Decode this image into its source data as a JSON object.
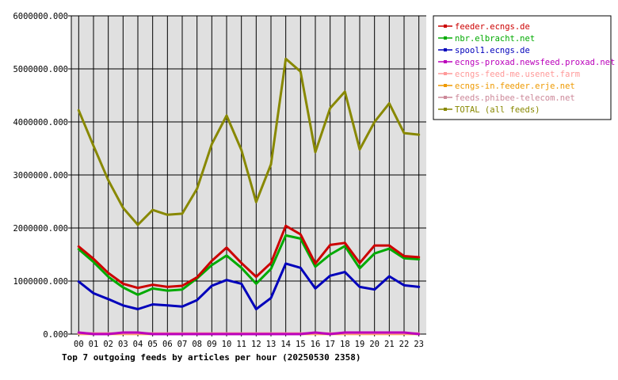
{
  "chart_data": {
    "type": "line",
    "title": "Top 7 outgoing feeds by articles per hour (20250530 2358)",
    "xlabel": "",
    "ylabel": "",
    "categories": [
      "00",
      "01",
      "02",
      "03",
      "04",
      "05",
      "06",
      "07",
      "08",
      "09",
      "10",
      "11",
      "12",
      "13",
      "14",
      "15",
      "16",
      "17",
      "18",
      "19",
      "20",
      "21",
      "22",
      "23"
    ],
    "ylim": [
      0,
      6000000
    ],
    "y_ticks": [
      0,
      1000000,
      2000000,
      3000000,
      4000000,
      5000000,
      6000000
    ],
    "y_tick_labels": [
      "0.000",
      "1000000.000",
      "2000000.000",
      "3000000.000",
      "4000000.000",
      "5000000.000",
      "6000000.000"
    ],
    "grid": true,
    "legend_position": "right",
    "plot_background": "#e0e0e0",
    "series": [
      {
        "name": "feeder.ecngs.de",
        "color": "#cc0000",
        "values": [
          1650000,
          1420000,
          1150000,
          950000,
          870000,
          930000,
          890000,
          910000,
          1070000,
          1380000,
          1630000,
          1340000,
          1080000,
          1340000,
          2040000,
          1880000,
          1330000,
          1680000,
          1720000,
          1340000,
          1670000,
          1670000,
          1470000,
          1450000
        ]
      },
      {
        "name": "nbr.elbracht.net",
        "color": "#00aa00",
        "values": [
          1600000,
          1360000,
          1080000,
          880000,
          740000,
          860000,
          820000,
          840000,
          1050000,
          1300000,
          1480000,
          1250000,
          950000,
          1230000,
          1860000,
          1800000,
          1270000,
          1500000,
          1660000,
          1240000,
          1520000,
          1610000,
          1430000,
          1410000
        ]
      },
      {
        "name": "spool1.ecngs.de",
        "color": "#0000bb",
        "values": [
          990000,
          770000,
          660000,
          540000,
          470000,
          560000,
          540000,
          520000,
          640000,
          910000,
          1020000,
          950000,
          470000,
          680000,
          1330000,
          1250000,
          860000,
          1100000,
          1170000,
          890000,
          840000,
          1090000,
          920000,
          890000
        ]
      },
      {
        "name": "ecngs-proxad.newsfeed.proxad.net",
        "color": "#bb00bb",
        "values": [
          30000,
          0,
          0,
          30000,
          30000,
          0,
          0,
          0,
          0,
          0,
          0,
          0,
          0,
          0,
          0,
          0,
          30000,
          0,
          30000,
          30000,
          30000,
          30000,
          30000,
          0
        ]
      },
      {
        "name": "ecngs-feed-me.usenet.farm",
        "color": "#ff9999",
        "values": [
          10000,
          10000,
          10000,
          10000,
          10000,
          10000,
          10000,
          10000,
          10000,
          10000,
          10000,
          10000,
          10000,
          10000,
          10000,
          10000,
          10000,
          10000,
          10000,
          10000,
          10000,
          10000,
          10000,
          10000
        ]
      },
      {
        "name": "ecngs-in.feeder.erje.net",
        "color": "#ee9900",
        "values": [
          5000,
          5000,
          5000,
          5000,
          5000,
          5000,
          5000,
          5000,
          5000,
          5000,
          5000,
          5000,
          5000,
          5000,
          5000,
          5000,
          5000,
          5000,
          5000,
          5000,
          5000,
          5000,
          5000,
          5000
        ]
      },
      {
        "name": "feeds.phibee-telecom.net",
        "color": "#cc8899",
        "values": [
          20000,
          10000,
          10000,
          10000,
          10000,
          10000,
          10000,
          10000,
          10000,
          10000,
          10000,
          10000,
          10000,
          10000,
          10000,
          10000,
          10000,
          10000,
          10000,
          10000,
          10000,
          10000,
          10000,
          10000
        ]
      },
      {
        "name": "TOTAL (all feeds)",
        "color": "#888800",
        "values": [
          4220000,
          3550000,
          2900000,
          2380000,
          2060000,
          2340000,
          2250000,
          2270000,
          2740000,
          3580000,
          4120000,
          3470000,
          2490000,
          3200000,
          5190000,
          4950000,
          3430000,
          4260000,
          4570000,
          3480000,
          4000000,
          4350000,
          3790000,
          3760000
        ]
      }
    ]
  }
}
